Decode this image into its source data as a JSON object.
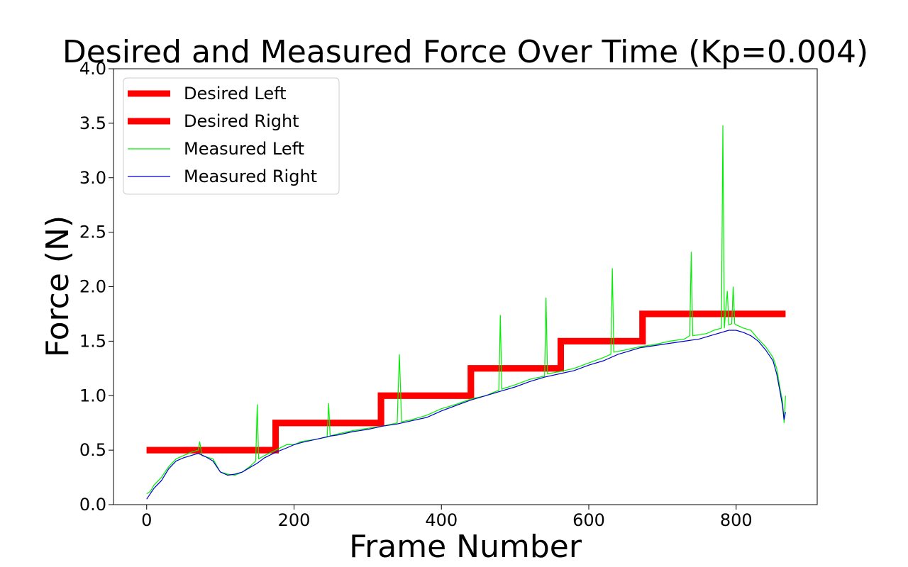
{
  "chart_data": {
    "type": "line",
    "title": "Desired and Measured Force Over Time (Kp=0.004)",
    "xlabel": "Frame Number",
    "ylabel": "Force (N)",
    "xlim": [
      -45,
      910
    ],
    "ylim": [
      0,
      4.0
    ],
    "xticks": [
      "0",
      "200",
      "400",
      "600",
      "800"
    ],
    "xtick_values": [
      0,
      200,
      400,
      600,
      800
    ],
    "yticks": [
      "0.0",
      "0.5",
      "1.0",
      "1.5",
      "2.0",
      "2.5",
      "3.0",
      "3.5",
      "4.0"
    ],
    "ytick_values": [
      0,
      0.5,
      1.0,
      1.5,
      2.0,
      2.5,
      3.0,
      3.5,
      4.0
    ],
    "grid": false,
    "legend_position": "upper-left",
    "series": [
      {
        "name": "Desired Left",
        "color": "#ff0000",
        "style": "thick",
        "x": [
          0,
          175,
          175,
          318,
          318,
          440,
          440,
          562,
          562,
          673,
          673,
          867
        ],
        "y": [
          0.5,
          0.5,
          0.75,
          0.75,
          1.0,
          1.0,
          1.25,
          1.25,
          1.5,
          1.5,
          1.75,
          1.75
        ]
      },
      {
        "name": "Desired Right",
        "color": "#ff0000",
        "style": "thick",
        "x": [
          0,
          175,
          175,
          318,
          318,
          440,
          440,
          562,
          562,
          673,
          673,
          867
        ],
        "y": [
          0.5,
          0.5,
          0.75,
          0.75,
          1.0,
          1.0,
          1.25,
          1.25,
          1.5,
          1.5,
          1.75,
          1.75
        ]
      },
      {
        "name": "Measured Left",
        "color": "#00ee00",
        "style": "thin",
        "x": [
          0,
          5,
          10,
          20,
          30,
          40,
          50,
          60,
          70,
          72,
          75,
          80,
          90,
          100,
          110,
          120,
          130,
          140,
          148,
          150,
          152,
          160,
          175,
          190,
          200,
          210,
          230,
          245,
          247,
          249,
          260,
          280,
          300,
          320,
          340,
          343,
          346,
          360,
          380,
          400,
          420,
          440,
          460,
          478,
          480,
          482,
          500,
          520,
          540,
          542,
          544,
          560,
          580,
          600,
          620,
          630,
          632,
          634,
          650,
          670,
          690,
          710,
          730,
          737,
          739,
          741,
          760,
          770,
          780,
          782,
          784,
          788,
          790,
          794,
          796,
          798,
          800,
          810,
          820,
          830,
          840,
          850,
          855,
          860,
          863,
          865,
          867
        ],
        "y": [
          0.1,
          0.12,
          0.18,
          0.25,
          0.35,
          0.42,
          0.45,
          0.48,
          0.5,
          0.58,
          0.45,
          0.44,
          0.42,
          0.3,
          0.28,
          0.27,
          0.3,
          0.35,
          0.4,
          0.92,
          0.42,
          0.45,
          0.5,
          0.55,
          0.55,
          0.58,
          0.6,
          0.62,
          0.93,
          0.63,
          0.65,
          0.68,
          0.7,
          0.72,
          0.75,
          1.38,
          0.76,
          0.78,
          0.82,
          0.88,
          0.92,
          0.97,
          1.0,
          1.05,
          1.74,
          1.06,
          1.1,
          1.15,
          1.18,
          1.9,
          1.2,
          1.22,
          1.25,
          1.3,
          1.35,
          1.38,
          2.17,
          1.4,
          1.42,
          1.45,
          1.47,
          1.5,
          1.52,
          1.55,
          2.32,
          1.55,
          1.57,
          1.6,
          1.62,
          3.48,
          1.62,
          1.96,
          1.65,
          1.66,
          2.0,
          1.66,
          1.65,
          1.62,
          1.6,
          1.52,
          1.45,
          1.35,
          1.25,
          1.05,
          0.95,
          0.75,
          1.0
        ]
      },
      {
        "name": "Measured Right",
        "color": "#0000cc",
        "style": "thin",
        "x": [
          0,
          5,
          10,
          20,
          30,
          40,
          50,
          60,
          70,
          80,
          90,
          100,
          110,
          120,
          130,
          140,
          150,
          160,
          175,
          190,
          200,
          210,
          230,
          250,
          260,
          280,
          300,
          320,
          340,
          360,
          380,
          400,
          420,
          440,
          460,
          480,
          500,
          520,
          540,
          560,
          580,
          600,
          620,
          640,
          650,
          670,
          690,
          710,
          730,
          750,
          760,
          770,
          780,
          790,
          800,
          810,
          820,
          830,
          840,
          850,
          855,
          860,
          863,
          865,
          867
        ],
        "y": [
          0.05,
          0.1,
          0.15,
          0.22,
          0.33,
          0.4,
          0.43,
          0.45,
          0.47,
          0.44,
          0.4,
          0.3,
          0.27,
          0.28,
          0.3,
          0.34,
          0.38,
          0.43,
          0.48,
          0.52,
          0.55,
          0.57,
          0.6,
          0.63,
          0.64,
          0.67,
          0.69,
          0.72,
          0.74,
          0.77,
          0.8,
          0.86,
          0.91,
          0.96,
          1.0,
          1.04,
          1.08,
          1.13,
          1.17,
          1.2,
          1.23,
          1.28,
          1.32,
          1.38,
          1.4,
          1.44,
          1.46,
          1.48,
          1.5,
          1.52,
          1.54,
          1.56,
          1.58,
          1.6,
          1.6,
          1.58,
          1.55,
          1.5,
          1.42,
          1.32,
          1.2,
          1.02,
          0.9,
          0.78,
          0.85
        ]
      }
    ]
  }
}
